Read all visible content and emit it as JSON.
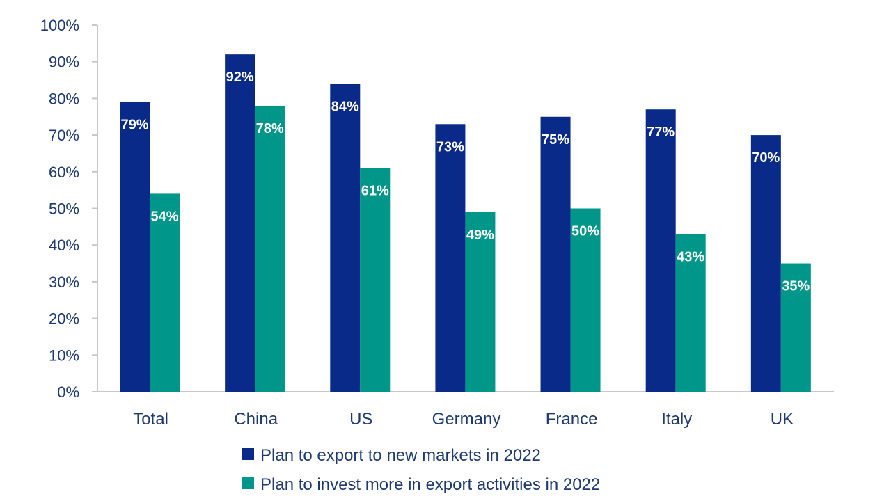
{
  "chart_data": {
    "type": "bar",
    "title": "",
    "xlabel": "",
    "ylabel": "",
    "ylim": [
      0,
      100
    ],
    "yticks": [
      "0%",
      "10%",
      "20%",
      "30%",
      "40%",
      "50%",
      "60%",
      "70%",
      "80%",
      "90%",
      "100%"
    ],
    "categories": [
      "Total",
      "China",
      "US",
      "Germany",
      "France",
      "Italy",
      "UK"
    ],
    "series": [
      {
        "name": "Plan to export to new markets in 2022",
        "color": "#0a2a8a",
        "values": [
          79,
          92,
          84,
          73,
          75,
          77,
          70
        ],
        "labels": [
          "79%",
          "92%",
          "84%",
          "73%",
          "75%",
          "77%",
          "70%"
        ]
      },
      {
        "name": "Plan to invest more in export activities in 2022",
        "color": "#00968a",
        "values": [
          54,
          78,
          61,
          49,
          50,
          43,
          35
        ],
        "labels": [
          "54%",
          "78%",
          "61%",
          "49%",
          "50%",
          "43%",
          "35%"
        ]
      }
    ],
    "grid": false,
    "legend_position": "bottom"
  }
}
